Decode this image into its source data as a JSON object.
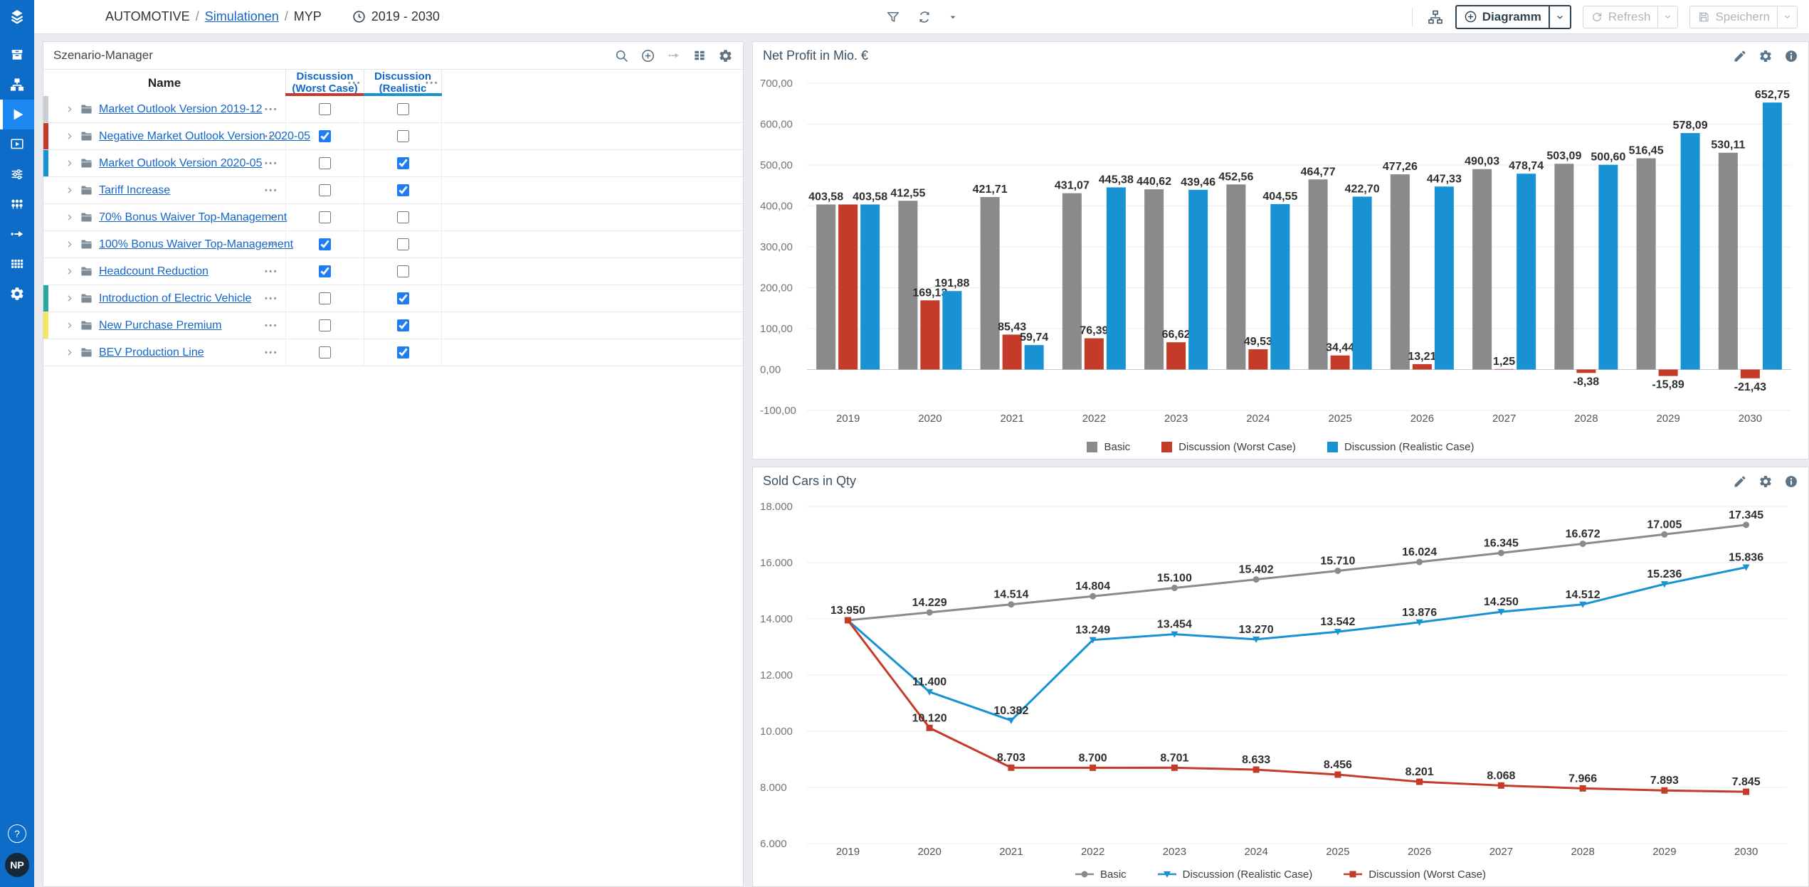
{
  "topbar": {
    "breadcrumb_app": "AUTOMOTIVE",
    "separator": "/",
    "breadcrumb_section": "Simulationen",
    "breadcrumb_page": "MYP",
    "period": "2019 - 2030",
    "diagramm_button": "Diagramm",
    "refresh_button": "Refresh",
    "save_button": "Speichern"
  },
  "sidebar": {
    "help_label": "?",
    "avatar_initials": "NP"
  },
  "scenario_manager": {
    "title": "Szenario-Manager",
    "name_header": "Name",
    "worst_case_header": [
      "Discussion",
      "(Worst Case)"
    ],
    "realistic_header": [
      "Discussion",
      "(Realistic"
    ],
    "more_label": "•••",
    "worst_underline_color": "#c53b2a",
    "realistic_underline_color": "#1892d2",
    "rows": [
      {
        "name": "Market Outlook Version 2019-12",
        "bar_color": "#c9ced3",
        "worst": false,
        "realistic": false
      },
      {
        "name": "Negative Market Outlook Version 2020-05",
        "bar_color": "#c53b2a",
        "worst": true,
        "realistic": false
      },
      {
        "name": "Market Outlook Version 2020-05",
        "bar_color": "#1892d2",
        "worst": false,
        "realistic": true
      },
      {
        "name": "Tariff Increase",
        "bar_color": null,
        "worst": false,
        "realistic": true
      },
      {
        "name": "70% Bonus Waiver Top-Management",
        "bar_color": null,
        "worst": false,
        "realistic": false
      },
      {
        "name": "100% Bonus Waiver Top-Management",
        "bar_color": null,
        "worst": true,
        "realistic": false
      },
      {
        "name": "Headcount Reduction",
        "bar_color": null,
        "worst": true,
        "realistic": false
      },
      {
        "name": "Introduction of Electric Vehicle",
        "bar_color": "#2aa79e",
        "worst": false,
        "realistic": true
      },
      {
        "name": "New Purchase Premium",
        "bar_color": "#f3e65f",
        "worst": false,
        "realistic": true
      },
      {
        "name": "BEV Production Line",
        "bar_color": null,
        "worst": false,
        "realistic": true
      }
    ]
  },
  "chart_data": [
    {
      "type": "bar",
      "title": "Net Profit in Mio. €",
      "categories": [
        "2019",
        "2020",
        "2021",
        "2022",
        "2023",
        "2024",
        "2025",
        "2026",
        "2027",
        "2028",
        "2029",
        "2030"
      ],
      "series": [
        {
          "name": "Basic",
          "color": "#8a8a8a",
          "values": [
            403.58,
            412.55,
            421.71,
            431.07,
            440.62,
            452.56,
            464.77,
            477.26,
            490.03,
            503.09,
            516.45,
            530.11
          ]
        },
        {
          "name": "Discussion (Worst Case)",
          "color": "#c53b2a",
          "hide_label_at": [
            0
          ],
          "values": [
            403.58,
            169.13,
            85.43,
            76.39,
            66.62,
            49.53,
            34.44,
            13.21,
            1.25,
            -8.38,
            -15.89,
            -21.43
          ]
        },
        {
          "name": "Discussion (Realistic Case)",
          "color": "#1892d2",
          "values": [
            403.58,
            191.88,
            59.74,
            445.38,
            439.46,
            404.55,
            422.7,
            447.33,
            478.74,
            500.6,
            578.09,
            652.75
          ]
        }
      ],
      "ylim": [
        -100,
        700
      ],
      "ytick": 100,
      "format": "comma2",
      "grid": true,
      "legend_position": "bottom"
    },
    {
      "type": "line",
      "title": "Sold Cars in Qty",
      "categories": [
        "2019",
        "2020",
        "2021",
        "2022",
        "2023",
        "2024",
        "2025",
        "2026",
        "2027",
        "2028",
        "2029",
        "2030"
      ],
      "series": [
        {
          "name": "Basic",
          "color": "#8a8a8a",
          "marker": "circle",
          "values": [
            13950,
            14229,
            14514,
            14804,
            15100,
            15402,
            15710,
            16024,
            16345,
            16672,
            17005,
            17345
          ]
        },
        {
          "name": "Discussion (Realistic Case)",
          "color": "#1892d2",
          "marker": "triangle-down",
          "hide_label_at": [
            0
          ],
          "values": [
            13950,
            11400,
            10382,
            13249,
            13454,
            13270,
            13542,
            13876,
            14250,
            14512,
            15236,
            15836
          ]
        },
        {
          "name": "Discussion (Worst Case)",
          "color": "#c53b2a",
          "marker": "square",
          "hide_label_at": [
            0
          ],
          "values": [
            13950,
            10120,
            8703,
            8700,
            8701,
            8633,
            8456,
            8201,
            8068,
            7966,
            7893,
            7845
          ]
        }
      ],
      "ylim": [
        6000,
        18000
      ],
      "ytick": 2000,
      "format": "thousands",
      "grid": true,
      "legend_position": "bottom"
    }
  ]
}
